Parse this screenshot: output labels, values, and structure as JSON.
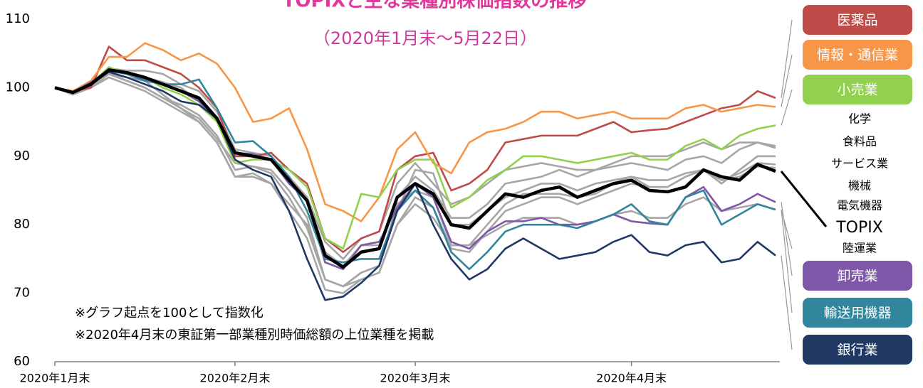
{
  "chart_data": {
    "type": "line",
    "title": "TOPIXと主な業種別株価指数の推移",
    "subtitle": "（2020年1月末～5月22日）",
    "annotations": [
      "※グラフ起点を100として指数化",
      "※2020年4月末の東証第一部業種別時価総額の上位業種を掲載"
    ],
    "categories": [
      "2020年1月末",
      null,
      null,
      null,
      null,
      null,
      null,
      null,
      null,
      null,
      "2020年2月末",
      null,
      null,
      null,
      null,
      null,
      null,
      null,
      null,
      null,
      "2020年3月末",
      null,
      null,
      null,
      null,
      null,
      null,
      null,
      null,
      null,
      null,
      null,
      "2020年4月末",
      null,
      null,
      null,
      null,
      null,
      null,
      null,
      null
    ],
    "ylim": [
      60,
      110
    ],
    "yticks": [
      60,
      70,
      80,
      90,
      100,
      110
    ],
    "grid": false,
    "series": [
      {
        "name": "化学",
        "color": "#a6a6a6",
        "values": [
          100,
          99.2,
          100.3,
          102.5,
          102,
          101.5,
          100.8,
          100,
          98,
          95,
          90,
          90,
          89.5,
          86,
          84,
          76,
          74,
          77,
          77,
          84,
          87,
          85,
          81,
          81,
          83,
          86,
          86.5,
          87,
          88,
          87,
          88,
          88.5,
          89,
          88.5,
          88,
          89.5,
          90,
          89,
          91,
          92,
          91.5
        ]
      },
      {
        "name": "食料品",
        "color": "#a6a6a6",
        "values": [
          100,
          99.5,
          100.8,
          102.8,
          102.5,
          102.5,
          102,
          100.5,
          99.5,
          96.5,
          91,
          90.5,
          90,
          87,
          84,
          77.5,
          75,
          78,
          79,
          86,
          89,
          86,
          83,
          84,
          86,
          88,
          88.5,
          89,
          88.5,
          88,
          88,
          89,
          90,
          90,
          90,
          91,
          92,
          91,
          92,
          92,
          91.2
        ]
      },
      {
        "name": "サービス業",
        "color": "#a6a6a6",
        "values": [
          100,
          99,
          100,
          102,
          101,
          100,
          98.5,
          97.5,
          96,
          93,
          88,
          88.5,
          88,
          85,
          81,
          72,
          71,
          73,
          74,
          82,
          88,
          87.5,
          80,
          80,
          82,
          84,
          85,
          86,
          86,
          85,
          86,
          86.5,
          87,
          86.5,
          86.5,
          87.5,
          88,
          86,
          88,
          90,
          90
        ]
      },
      {
        "name": "機械",
        "color": "#a6a6a6",
        "values": [
          100,
          99,
          100,
          101.5,
          100.5,
          99.5,
          98,
          96.5,
          95,
          92,
          87,
          87.5,
          86,
          82,
          78,
          70.5,
          70,
          72,
          73,
          80,
          84,
          82.5,
          76.5,
          76,
          79,
          82,
          83,
          84,
          84,
          83,
          84,
          85,
          86,
          85.5,
          85.5,
          87,
          88,
          86.5,
          87.5,
          89,
          88.8
        ]
      },
      {
        "name": "電気機器",
        "color": "#a6a6a6",
        "values": [
          100,
          99.2,
          100.5,
          102,
          101,
          100,
          98.5,
          97,
          95.5,
          92.5,
          89,
          88.5,
          87.5,
          84,
          79.5,
          72,
          71,
          73,
          74,
          83,
          85,
          84,
          77,
          77,
          80,
          83,
          84.5,
          84.5,
          84.5,
          84,
          84.5,
          86,
          87,
          85.5,
          85.5,
          87,
          88,
          86.5,
          87,
          88.5,
          88.3
        ]
      },
      {
        "name": "陸運業",
        "color": "#a6a6a6",
        "values": [
          100,
          99.5,
          100.3,
          102,
          101.5,
          101,
          99,
          97,
          95,
          92,
          87,
          87,
          86,
          83,
          80,
          72,
          71,
          72,
          73,
          80,
          83,
          81,
          77,
          77,
          78.5,
          80,
          81,
          81,
          81,
          80,
          80.5,
          81.5,
          82,
          81,
          81,
          83,
          84,
          82,
          82.5,
          83,
          82.2
        ]
      },
      {
        "name": "医薬品",
        "color": "#be4b48",
        "values": [
          100,
          99.5,
          100,
          106,
          104,
          104,
          103,
          102,
          100,
          97,
          90,
          90,
          90.5,
          88,
          86,
          78,
          76,
          78,
          79,
          88,
          90,
          90.5,
          85,
          86,
          88,
          92,
          92.5,
          93,
          93,
          93,
          94,
          95,
          93.5,
          93.8,
          94,
          95,
          96,
          97,
          97.5,
          99.5,
          98.5
        ]
      },
      {
        "name": "情報・通信業",
        "color": "#f79646",
        "values": [
          100,
          99.5,
          101,
          104.5,
          104.5,
          106.5,
          105.5,
          104,
          105,
          103.5,
          100,
          95,
          95.5,
          97,
          91,
          83,
          82,
          80.5,
          84,
          91,
          93.5,
          89,
          87.5,
          92,
          93.5,
          94,
          95,
          96.5,
          96.5,
          95.5,
          96,
          96.5,
          95.5,
          95.5,
          95.5,
          97,
          97.5,
          96.5,
          97,
          97.5,
          97.2
        ]
      },
      {
        "name": "小売業",
        "color": "#92d050",
        "values": [
          100,
          99.3,
          100.5,
          103,
          102,
          101.5,
          100,
          99,
          97.5,
          95,
          89,
          89.5,
          89.5,
          88,
          85.5,
          78,
          76.5,
          84.5,
          84,
          88,
          89.5,
          89.5,
          82.5,
          84,
          86.5,
          88,
          90,
          90,
          89.5,
          89,
          89.5,
          90,
          90.5,
          89.5,
          89.5,
          91.5,
          92.5,
          91,
          93,
          94,
          94.5
        ]
      },
      {
        "name": "卸売業",
        "color": "#7e57a8",
        "values": [
          100,
          99.3,
          100.8,
          102.5,
          102,
          101.2,
          100.5,
          99.5,
          98,
          95.5,
          90.5,
          90.3,
          89.5,
          86,
          83.5,
          74.5,
          73.5,
          77,
          77.5,
          82.5,
          86,
          84,
          77.5,
          76.5,
          79,
          80.5,
          80.5,
          81,
          80,
          80,
          80.5,
          81.5,
          80.5,
          80.2,
          80,
          84,
          85.5,
          82,
          83,
          84.5,
          83.3
        ]
      },
      {
        "name": "輸送用機器",
        "color": "#31859c",
        "values": [
          100,
          99.3,
          100.5,
          102.5,
          102,
          101,
          100.5,
          100.5,
          101.2,
          97,
          92,
          92.2,
          90,
          87,
          82,
          75,
          74.5,
          75,
          75,
          82,
          85,
          82.5,
          76,
          73.5,
          76,
          79,
          80,
          80,
          80,
          79.5,
          80.5,
          81.5,
          83,
          80.5,
          80,
          84,
          85,
          80,
          81.5,
          83,
          82.2
        ]
      },
      {
        "name": "銀行業",
        "color": "#1f3864",
        "values": [
          100,
          99.3,
          100.5,
          102.3,
          101.5,
          100.5,
          99.5,
          98,
          97.5,
          95.5,
          89.5,
          88,
          87,
          82,
          75,
          69,
          69.5,
          71.5,
          74,
          82,
          86,
          80,
          75,
          72,
          73.5,
          76.5,
          78,
          76.5,
          75,
          75.5,
          76,
          77.5,
          78.5,
          76,
          75.5,
          77,
          77.5,
          74.5,
          75,
          77.5,
          75.5
        ]
      },
      {
        "name": "TOPIX",
        "color": "#000000",
        "values": [
          100,
          99.3,
          100.5,
          102.6,
          102.2,
          101.5,
          100.5,
          99.5,
          98.5,
          95.5,
          90.5,
          90,
          89.5,
          86.5,
          83.5,
          75.5,
          73.8,
          76,
          76.5,
          84,
          86,
          84.5,
          80,
          79.5,
          82,
          84.5,
          84,
          85,
          85.5,
          84,
          85,
          86,
          86.5,
          85,
          84.8,
          85.5,
          88,
          87,
          86.5,
          88.8,
          87.8
        ]
      }
    ]
  }
}
